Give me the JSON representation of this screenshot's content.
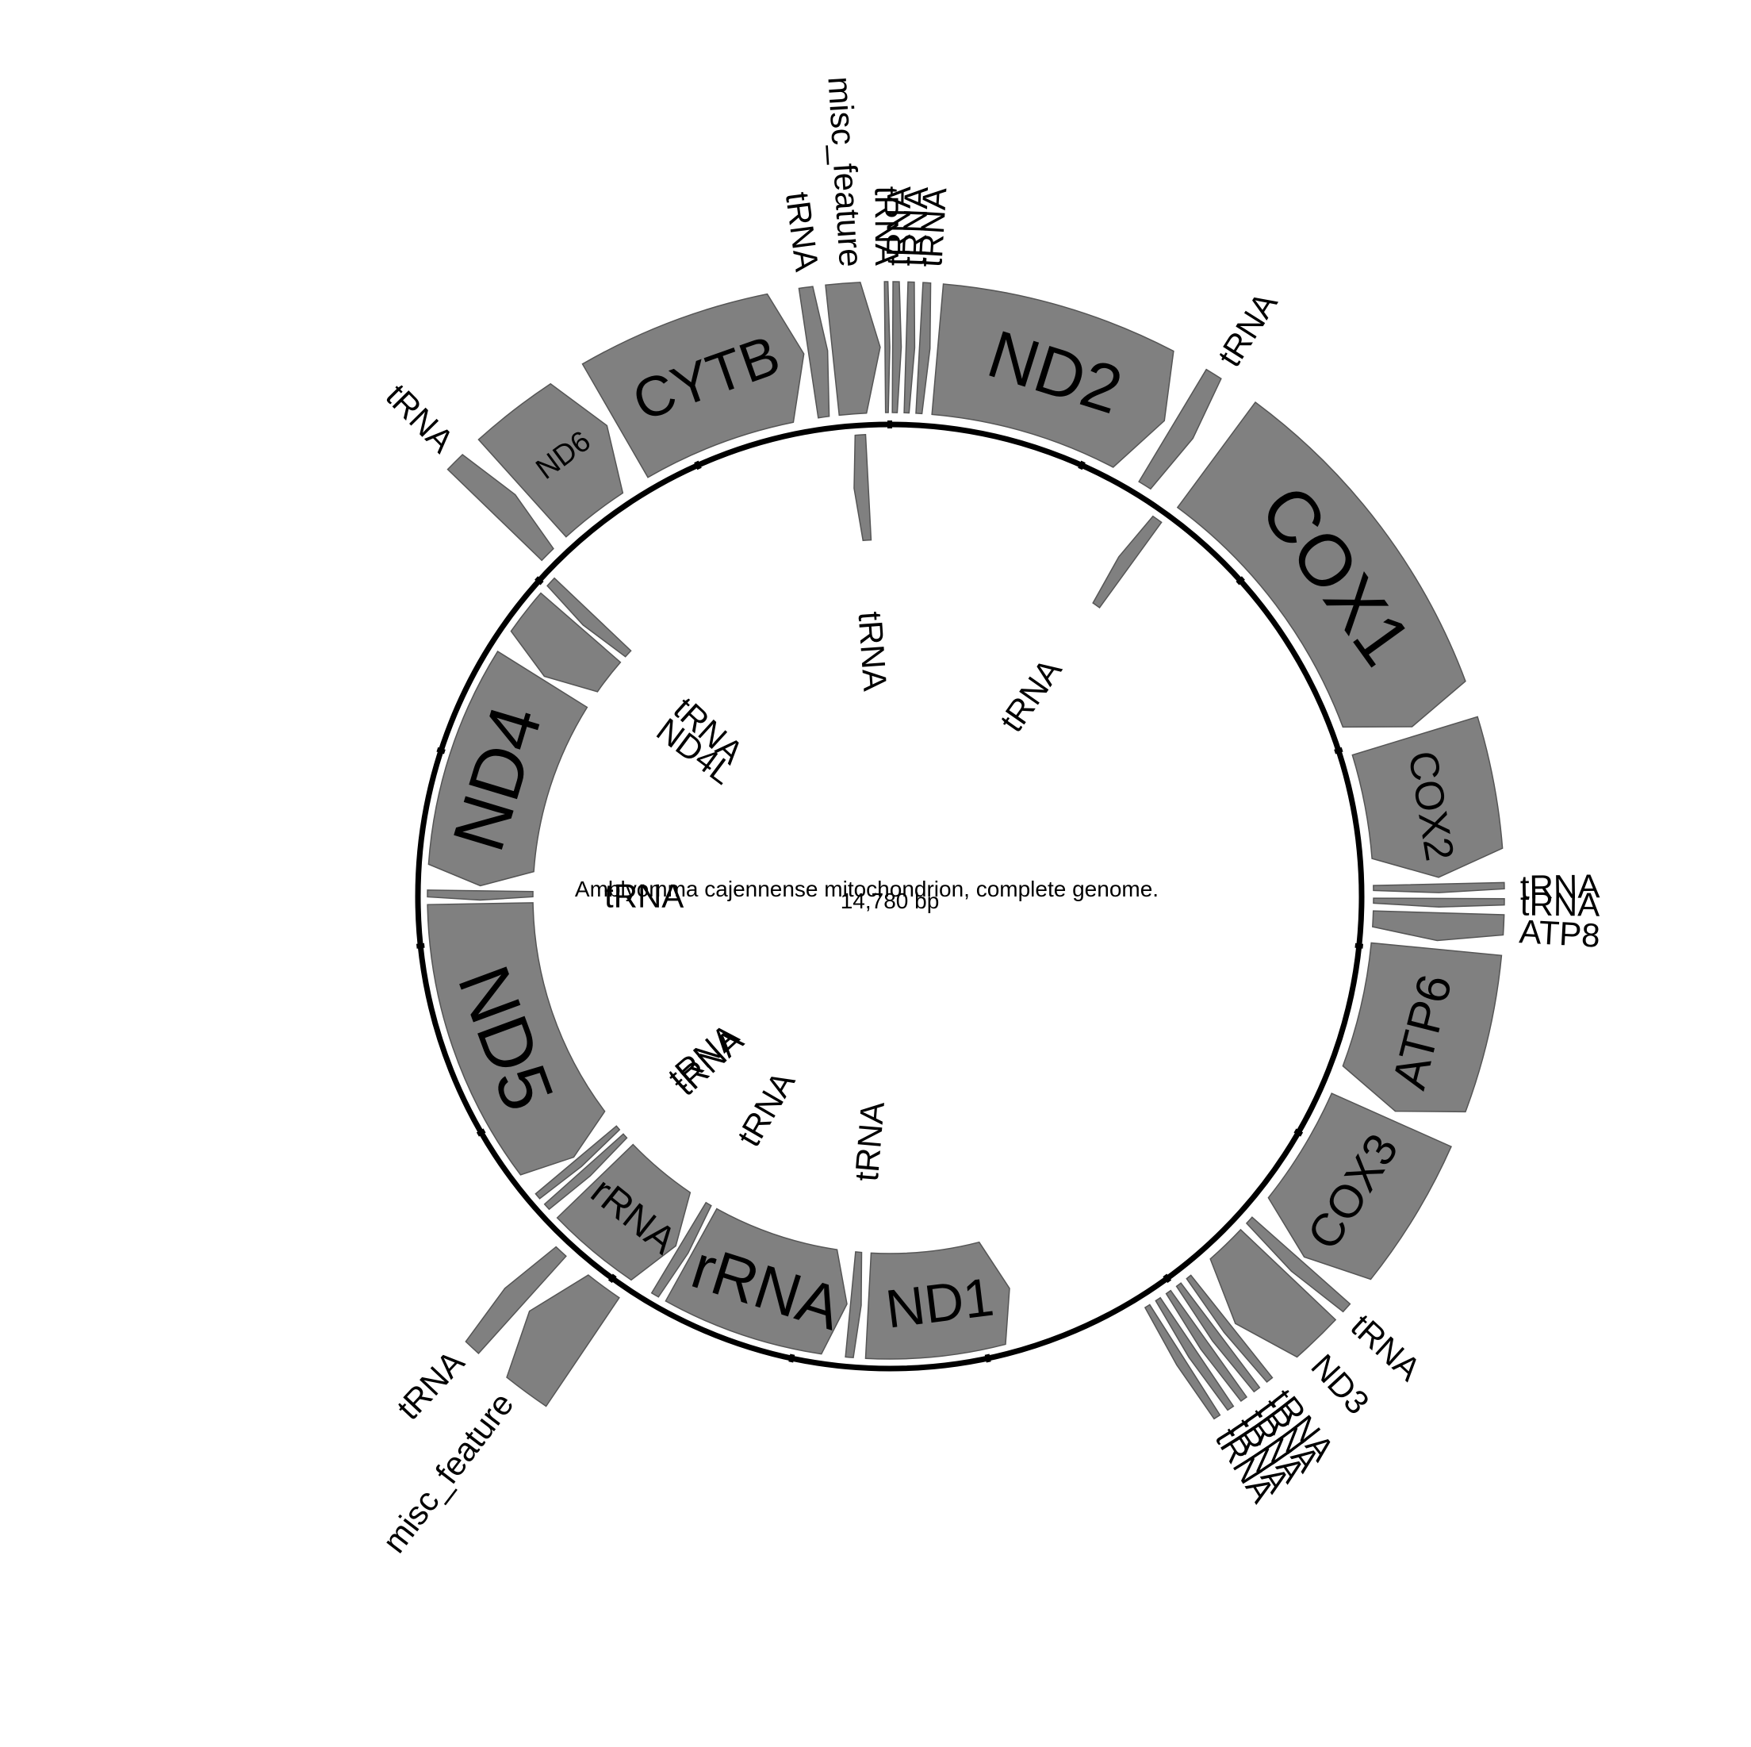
{
  "title": "Amblyomma cajennense mitochondrion, complete genome.",
  "genome_length": "14,780 bp",
  "colors": {
    "feature_fill": "#808080",
    "feature_stroke": "#555555",
    "backbone": "#000000",
    "background": "#ffffff"
  },
  "features": [
    {
      "name": "ND2",
      "strand": "+",
      "start_deg": 5,
      "end_deg": 30
    },
    {
      "name": "tRNA",
      "strand": "+",
      "start_deg": 31,
      "end_deg": 33.5
    },
    {
      "name": "tRNA",
      "strand": "-",
      "start_deg": 34,
      "end_deg": 36
    },
    {
      "name": "COX1",
      "strand": "+",
      "start_deg": 36.5,
      "end_deg": 72
    },
    {
      "name": "COX2",
      "strand": "+",
      "start_deg": 73,
      "end_deg": 88
    },
    {
      "name": "tRNA",
      "strand": "+",
      "start_deg": 88.7,
      "end_deg": 89.6
    },
    {
      "name": "tRNA",
      "strand": "+",
      "start_deg": 90.2,
      "end_deg": 91.1
    },
    {
      "name": "ATP8",
      "strand": "+",
      "start_deg": 91.7,
      "end_deg": 94.6
    },
    {
      "name": "ATP6",
      "strand": "+",
      "start_deg": 95.5,
      "end_deg": 113
    },
    {
      "name": "COX3",
      "strand": "+",
      "start_deg": 114,
      "end_deg": 131
    },
    {
      "name": "tRNA",
      "strand": "+",
      "start_deg": 131.5,
      "end_deg": 133
    },
    {
      "name": "ND3",
      "strand": "+",
      "start_deg": 133.5,
      "end_deg": 141
    },
    {
      "name": "tRNA",
      "strand": "+",
      "start_deg": 141.5,
      "end_deg": 142.5
    },
    {
      "name": "tRNA",
      "strand": "+",
      "start_deg": 143,
      "end_deg": 144
    },
    {
      "name": "tRNA",
      "strand": "+",
      "start_deg": 144.5,
      "end_deg": 145.5
    },
    {
      "name": "tRNA",
      "strand": "+",
      "start_deg": 146,
      "end_deg": 147
    },
    {
      "name": "tRNA",
      "strand": "+",
      "start_deg": 147.5,
      "end_deg": 148.5
    },
    {
      "name": "ND1",
      "strand": "-",
      "start_deg": 163,
      "end_deg": 183
    },
    {
      "name": "tRNA",
      "strand": "-",
      "start_deg": 184,
      "end_deg": 185.5
    },
    {
      "name": "rRNA",
      "strand": "-",
      "start_deg": 186,
      "end_deg": 209
    },
    {
      "name": "tRNA",
      "strand": "-",
      "start_deg": 209.5,
      "end_deg": 211
    },
    {
      "name": "rRNA",
      "strand": "-",
      "start_deg": 211.5,
      "end_deg": 226
    },
    {
      "name": "misc_feature",
      "strand": "+",
      "start_deg": 214,
      "end_deg": 221
    },
    {
      "name": "tRNA",
      "strand": "+",
      "start_deg": 222,
      "end_deg": 224.5
    },
    {
      "name": "tRNA",
      "strand": "-",
      "start_deg": 227,
      "end_deg": 228.3
    },
    {
      "name": "tRNA",
      "strand": "-",
      "start_deg": 228.8,
      "end_deg": 230
    },
    {
      "name": "ND5",
      "strand": "-",
      "start_deg": 230.5,
      "end_deg": 269
    },
    {
      "name": "tRNA",
      "strand": "-",
      "start_deg": 269.5,
      "end_deg": 270.8
    },
    {
      "name": "ND4",
      "strand": "-",
      "start_deg": 271.5,
      "end_deg": 302
    },
    {
      "name": "ND4L",
      "strand": "-",
      "start_deg": 302.5,
      "end_deg": 311
    },
    {
      "name": "tRNA",
      "strand": "-",
      "start_deg": 311.5,
      "end_deg": 313.5
    },
    {
      "name": "tRNA",
      "strand": "+",
      "start_deg": 314,
      "end_deg": 317
    },
    {
      "name": "ND6",
      "strand": "+",
      "start_deg": 318,
      "end_deg": 329
    },
    {
      "name": "CYTB",
      "strand": "+",
      "start_deg": 330,
      "end_deg": 351
    },
    {
      "name": "tRNA",
      "strand": "+",
      "start_deg": 351.5,
      "end_deg": 353.5
    },
    {
      "name": "tRNA",
      "strand": "-",
      "start_deg": 355,
      "end_deg": 357
    },
    {
      "name": "misc_feature",
      "strand": "+",
      "start_deg": 354,
      "end_deg": 359
    },
    {
      "name": "tRNA",
      "strand": "+",
      "start_deg": 359.5,
      "end_deg": 360
    },
    {
      "name": "tRNA",
      "strand": "+",
      "start_deg": 0.3,
      "end_deg": 1.2
    },
    {
      "name": "tRNA",
      "strand": "+",
      "start_deg": 1.7,
      "end_deg": 2.6
    },
    {
      "name": "tRNA",
      "strand": "+",
      "start_deg": 3.1,
      "end_deg": 4.2
    }
  ]
}
